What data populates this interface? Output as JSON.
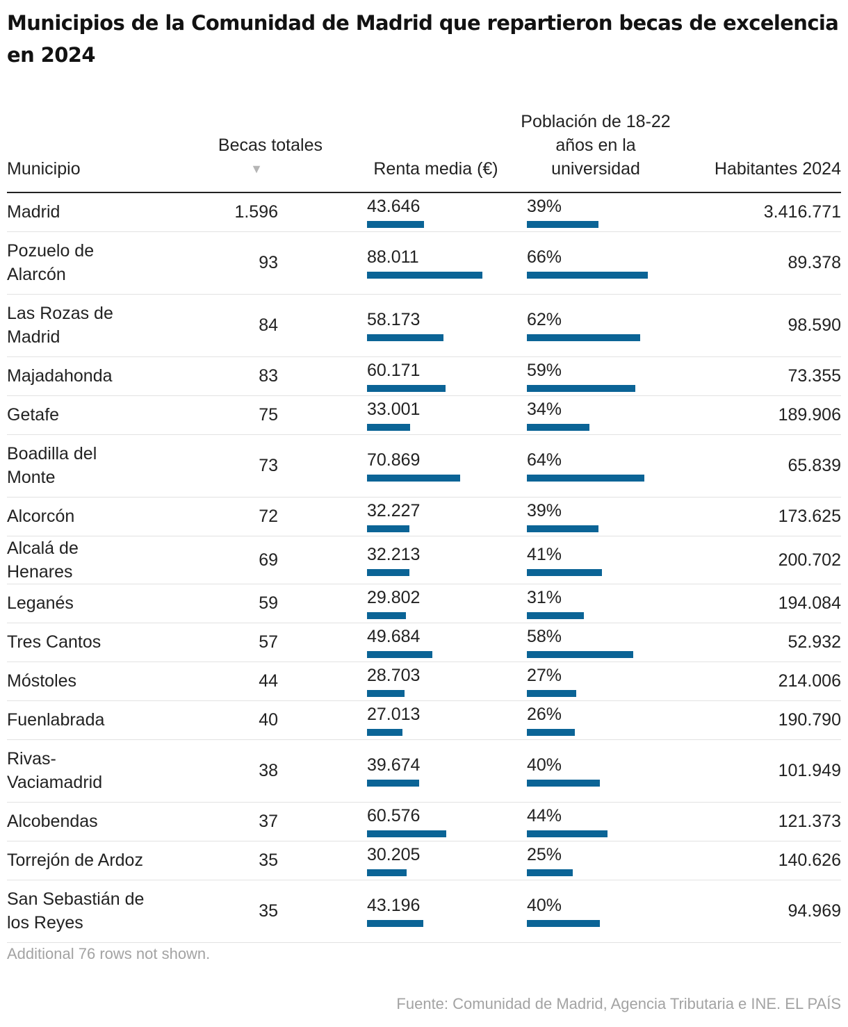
{
  "title": "Municipios de la Comunidad de Madrid que repartieron becas de excelencia en 2024",
  "columns": {
    "municipio": "Municipio",
    "becas": "Becas totales",
    "renta": "Renta media (€)",
    "poblacion": "Población de 18-22 años en la universidad",
    "habitantes": "Habitantes 2024",
    "sort_icon": "sort-down-icon"
  },
  "note": "Additional 76 rows not shown.",
  "source": "Fuente: Comunidad de Madrid, Agencia Tributaria e INE. EL PAÍS",
  "colors": {
    "bar": "#0b6496",
    "muted": "#a3a3a3"
  },
  "chart_data": {
    "type": "table",
    "title": "Municipios de la Comunidad de Madrid que repartieron becas de excelencia en 2024",
    "renta_max": 88011,
    "poblacion_max": 66,
    "rows": [
      {
        "municipio": "Madrid",
        "becas": "1.596",
        "renta": "43.646",
        "renta_value": 43646,
        "poblacion": "39%",
        "poblacion_value": 39,
        "habitantes": "3.416.771"
      },
      {
        "municipio": "Pozuelo de Alarcón",
        "becas": "93",
        "renta": "88.011",
        "renta_value": 88011,
        "poblacion": "66%",
        "poblacion_value": 66,
        "habitantes": "89.378"
      },
      {
        "municipio": "Las Rozas de Madrid",
        "becas": "84",
        "renta": "58.173",
        "renta_value": 58173,
        "poblacion": "62%",
        "poblacion_value": 62,
        "habitantes": "98.590"
      },
      {
        "municipio": "Majadahonda",
        "becas": "83",
        "renta": "60.171",
        "renta_value": 60171,
        "poblacion": "59%",
        "poblacion_value": 59,
        "habitantes": "73.355"
      },
      {
        "municipio": "Getafe",
        "becas": "75",
        "renta": "33.001",
        "renta_value": 33001,
        "poblacion": "34%",
        "poblacion_value": 34,
        "habitantes": "189.906"
      },
      {
        "municipio": "Boadilla del Monte",
        "becas": "73",
        "renta": "70.869",
        "renta_value": 70869,
        "poblacion": "64%",
        "poblacion_value": 64,
        "habitantes": "65.839"
      },
      {
        "municipio": "Alcorcón",
        "becas": "72",
        "renta": "32.227",
        "renta_value": 32227,
        "poblacion": "39%",
        "poblacion_value": 39,
        "habitantes": "173.625"
      },
      {
        "municipio": "Alcalá de Henares",
        "becas": "69",
        "renta": "32.213",
        "renta_value": 32213,
        "poblacion": "41%",
        "poblacion_value": 41,
        "habitantes": "200.702"
      },
      {
        "municipio": "Leganés",
        "becas": "59",
        "renta": "29.802",
        "renta_value": 29802,
        "poblacion": "31%",
        "poblacion_value": 31,
        "habitantes": "194.084"
      },
      {
        "municipio": "Tres Cantos",
        "becas": "57",
        "renta": "49.684",
        "renta_value": 49684,
        "poblacion": "58%",
        "poblacion_value": 58,
        "habitantes": "52.932"
      },
      {
        "municipio": "Móstoles",
        "becas": "44",
        "renta": "28.703",
        "renta_value": 28703,
        "poblacion": "27%",
        "poblacion_value": 27,
        "habitantes": "214.006"
      },
      {
        "municipio": "Fuenlabrada",
        "becas": "40",
        "renta": "27.013",
        "renta_value": 27013,
        "poblacion": "26%",
        "poblacion_value": 26,
        "habitantes": "190.790"
      },
      {
        "municipio": "Rivas-Vaciamadrid",
        "becas": "38",
        "renta": "39.674",
        "renta_value": 39674,
        "poblacion": "40%",
        "poblacion_value": 40,
        "habitantes": "101.949"
      },
      {
        "municipio": "Alcobendas",
        "becas": "37",
        "renta": "60.576",
        "renta_value": 60576,
        "poblacion": "44%",
        "poblacion_value": 44,
        "habitantes": "121.373"
      },
      {
        "municipio": "Torrejón de Ardoz",
        "becas": "35",
        "renta": "30.205",
        "renta_value": 30205,
        "poblacion": "25%",
        "poblacion_value": 25,
        "habitantes": "140.626"
      },
      {
        "municipio": "San Sebastián de los Reyes",
        "becas": "35",
        "renta": "43.196",
        "renta_value": 43196,
        "poblacion": "40%",
        "poblacion_value": 40,
        "habitantes": "94.969"
      }
    ]
  }
}
